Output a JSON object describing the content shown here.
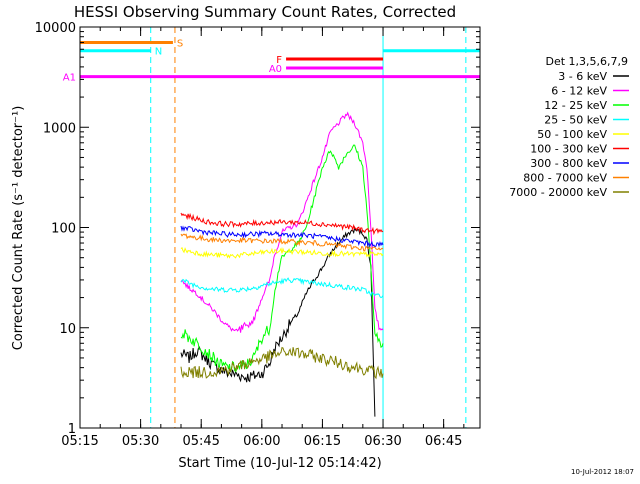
{
  "chart_data": {
    "type": "line",
    "title": "HESSI Observing Summary Count Rates, Corrected",
    "xlabel": "Start Time (10-Jul-12 05:14:42)",
    "ylabel": "Corrected Count Rate (s⁻¹ detector⁻¹)",
    "x_unit": "minutes after 05:15 UT",
    "xlim": [
      0,
      99
    ],
    "ylim": [
      1,
      10000
    ],
    "yscale": "log",
    "x_tick_labels": [
      "05:15",
      "05:30",
      "05:45",
      "06:00",
      "06:15",
      "06:30",
      "06:45"
    ],
    "x_ticks": [
      0,
      15,
      30,
      45,
      60,
      75,
      90
    ],
    "y_tick_labels": [
      "1",
      "10",
      "100",
      "1000",
      "10000"
    ],
    "y_ticks": [
      1,
      10,
      100,
      1000,
      10000
    ],
    "legend_title": "Det 1,3,5,6,7,9",
    "legend_position": "right",
    "footer_timestamp": "10-Jul-2012 18:07",
    "series": [
      {
        "name": "3 - 6 keV",
        "color": "#000000",
        "points": [
          [
            25,
            5.5
          ],
          [
            27,
            5
          ],
          [
            29,
            6
          ],
          [
            31,
            5
          ],
          [
            33,
            4.2
          ],
          [
            35,
            3.8
          ],
          [
            37,
            3.5
          ],
          [
            39,
            3.4
          ],
          [
            41,
            3.2
          ],
          [
            43,
            3.3
          ],
          [
            45,
            3.5
          ],
          [
            47,
            4.5
          ],
          [
            48,
            6
          ],
          [
            49,
            7
          ],
          [
            50,
            8
          ],
          [
            52,
            11
          ],
          [
            54,
            14
          ],
          [
            56,
            22
          ],
          [
            58,
            30
          ],
          [
            60,
            40
          ],
          [
            62,
            55
          ],
          [
            64,
            70
          ],
          [
            66,
            85
          ],
          [
            68,
            95
          ],
          [
            70,
            88
          ],
          [
            71,
            75
          ],
          [
            72,
            40
          ],
          [
            73,
            1.3
          ]
        ]
      },
      {
        "name": "6 - 12 keV",
        "color": "#ff00ff",
        "points": [
          [
            25,
            30
          ],
          [
            27,
            25
          ],
          [
            29,
            22
          ],
          [
            31,
            18
          ],
          [
            33,
            15
          ],
          [
            35,
            12
          ],
          [
            37,
            10
          ],
          [
            39,
            9
          ],
          [
            41,
            10
          ],
          [
            43,
            12
          ],
          [
            45,
            20
          ],
          [
            47,
            30
          ],
          [
            48,
            50
          ],
          [
            50,
            90
          ],
          [
            52,
            100
          ],
          [
            54,
            110
          ],
          [
            56,
            180
          ],
          [
            58,
            300
          ],
          [
            60,
            500
          ],
          [
            62,
            900
          ],
          [
            64,
            1100
          ],
          [
            66,
            1350
          ],
          [
            68,
            1100
          ],
          [
            70,
            700
          ],
          [
            71,
            400
          ],
          [
            72,
            100
          ],
          [
            73,
            15
          ],
          [
            74,
            10
          ],
          [
            75,
            9.5
          ]
        ]
      },
      {
        "name": "12 - 25 keV",
        "color": "#00ff00",
        "points": [
          [
            25,
            9
          ],
          [
            27,
            8
          ],
          [
            29,
            7
          ],
          [
            31,
            6
          ],
          [
            33,
            5
          ],
          [
            35,
            4.2
          ],
          [
            37,
            4
          ],
          [
            39,
            4
          ],
          [
            41,
            4.2
          ],
          [
            43,
            5
          ],
          [
            45,
            8
          ],
          [
            47,
            10
          ],
          [
            48,
            20
          ],
          [
            49,
            35
          ],
          [
            50,
            50
          ],
          [
            51,
            55
          ],
          [
            52,
            60
          ],
          [
            54,
            70
          ],
          [
            56,
            100
          ],
          [
            58,
            200
          ],
          [
            60,
            400
          ],
          [
            62,
            600
          ],
          [
            64,
            400
          ],
          [
            66,
            550
          ],
          [
            68,
            650
          ],
          [
            70,
            400
          ],
          [
            71,
            150
          ],
          [
            72,
            40
          ],
          [
            73,
            8
          ],
          [
            75,
            7
          ]
        ]
      },
      {
        "name": "25 - 50 keV",
        "color": "#00ffff",
        "points": [
          [
            25,
            30
          ],
          [
            28,
            27
          ],
          [
            31,
            25
          ],
          [
            34,
            24
          ],
          [
            37,
            24
          ],
          [
            40,
            24
          ],
          [
            43,
            25
          ],
          [
            46,
            27
          ],
          [
            48,
            28
          ],
          [
            50,
            29
          ],
          [
            52,
            30
          ],
          [
            55,
            29
          ],
          [
            58,
            28
          ],
          [
            61,
            27
          ],
          [
            64,
            26
          ],
          [
            67,
            25
          ],
          [
            70,
            24
          ],
          [
            72,
            22
          ],
          [
            73,
            21
          ],
          [
            75,
            21
          ]
        ]
      },
      {
        "name": "50 - 100 keV",
        "color": "#ffff00",
        "points": [
          [
            25,
            60
          ],
          [
            28,
            57
          ],
          [
            31,
            54
          ],
          [
            34,
            53
          ],
          [
            37,
            52
          ],
          [
            40,
            53
          ],
          [
            43,
            55
          ],
          [
            46,
            57
          ],
          [
            49,
            58
          ],
          [
            52,
            58
          ],
          [
            55,
            57
          ],
          [
            58,
            56
          ],
          [
            61,
            55
          ],
          [
            64,
            55
          ],
          [
            67,
            54
          ],
          [
            70,
            54
          ],
          [
            73,
            54
          ],
          [
            75,
            54
          ]
        ]
      },
      {
        "name": "100 - 300 keV",
        "color": "#ff0000",
        "points": [
          [
            25,
            135
          ],
          [
            28,
            125
          ],
          [
            31,
            115
          ],
          [
            34,
            110
          ],
          [
            37,
            108
          ],
          [
            40,
            108
          ],
          [
            43,
            110
          ],
          [
            46,
            112
          ],
          [
            49,
            113
          ],
          [
            52,
            113
          ],
          [
            55,
            112
          ],
          [
            58,
            110
          ],
          [
            61,
            107
          ],
          [
            64,
            104
          ],
          [
            67,
            100
          ],
          [
            70,
            95
          ],
          [
            73,
            92
          ],
          [
            75,
            92
          ]
        ]
      },
      {
        "name": "300 - 800 keV",
        "color": "#0000ff",
        "points": [
          [
            25,
            100
          ],
          [
            28,
            95
          ],
          [
            31,
            90
          ],
          [
            34,
            87
          ],
          [
            37,
            85
          ],
          [
            40,
            85
          ],
          [
            43,
            86
          ],
          [
            46,
            87
          ],
          [
            49,
            86
          ],
          [
            52,
            85
          ],
          [
            55,
            84
          ],
          [
            58,
            82
          ],
          [
            61,
            79
          ],
          [
            64,
            76
          ],
          [
            67,
            73
          ],
          [
            70,
            70
          ],
          [
            73,
            68
          ],
          [
            75,
            67
          ]
        ]
      },
      {
        "name": "800 - 7000 keV",
        "color": "#ff8000",
        "points": [
          [
            25,
            85
          ],
          [
            28,
            80
          ],
          [
            31,
            77
          ],
          [
            34,
            75
          ],
          [
            37,
            74
          ],
          [
            40,
            74
          ],
          [
            43,
            74
          ],
          [
            46,
            73
          ],
          [
            49,
            73
          ],
          [
            52,
            72
          ],
          [
            55,
            71
          ],
          [
            58,
            70
          ],
          [
            61,
            68
          ],
          [
            64,
            66
          ],
          [
            67,
            64
          ],
          [
            70,
            62
          ],
          [
            73,
            61
          ],
          [
            75,
            61
          ]
        ]
      },
      {
        "name": "7000 - 20000 keV",
        "color": "#808000",
        "points": [
          [
            25,
            3.7
          ],
          [
            28,
            3.6
          ],
          [
            31,
            3.6
          ],
          [
            34,
            3.7
          ],
          [
            37,
            3.9
          ],
          [
            40,
            4.2
          ],
          [
            43,
            4.7
          ],
          [
            46,
            5.0
          ],
          [
            49,
            5.5
          ],
          [
            52,
            5.8
          ],
          [
            55,
            5.5
          ],
          [
            58,
            5.2
          ],
          [
            61,
            4.8
          ],
          [
            64,
            4.5
          ],
          [
            67,
            4.1
          ],
          [
            70,
            3.9
          ],
          [
            73,
            3.6
          ],
          [
            75,
            3.5
          ]
        ]
      }
    ],
    "state_bars": [
      {
        "label": "S",
        "color": "#ff8000",
        "start": 0,
        "end": 23,
        "y": 7000
      },
      {
        "label": "N",
        "color": "#00ffff",
        "start": 0,
        "end": 17.5,
        "y": 5800
      },
      {
        "label": "F",
        "color": "#ff0000",
        "start": 51,
        "end": 75,
        "y": 4800
      },
      {
        "label": "A0",
        "color": "#ff00ff",
        "start": 51,
        "end": 75,
        "y": 3900
      },
      {
        "label": "A1",
        "color": "#ff00ff",
        "start": 0,
        "end": 99,
        "y": 3200
      },
      {
        "label": "",
        "color": "#00ffff",
        "start": 75,
        "end": 99,
        "y": 5800
      }
    ],
    "vertical_markers": [
      {
        "x": 0,
        "color": "#00ffff",
        "style": "solid"
      },
      {
        "x": 17.5,
        "color": "#00ffff",
        "style": "dashed"
      },
      {
        "x": 23.5,
        "color": "#ff8000",
        "style": "dashed"
      },
      {
        "x": 75,
        "color": "#00ffff",
        "style": "solid"
      },
      {
        "x": 95.5,
        "color": "#00ffff",
        "style": "dashed"
      }
    ]
  }
}
